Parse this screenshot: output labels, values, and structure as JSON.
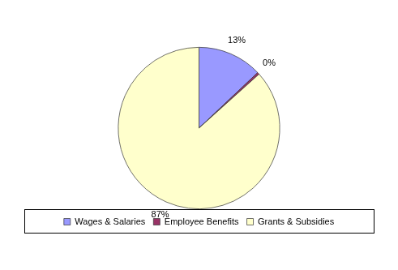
{
  "chart_data": {
    "type": "pie",
    "categories": [
      "Wages & Salaries",
      "Employee Benefits",
      "Grants & Subsidies"
    ],
    "values": [
      13,
      0.4,
      87
    ],
    "value_labels": [
      "13%",
      "0%",
      "87%"
    ],
    "colors": [
      "#9999ff",
      "#993366",
      "#ffffcc"
    ],
    "data_labels": true,
    "legend": "bottom"
  }
}
